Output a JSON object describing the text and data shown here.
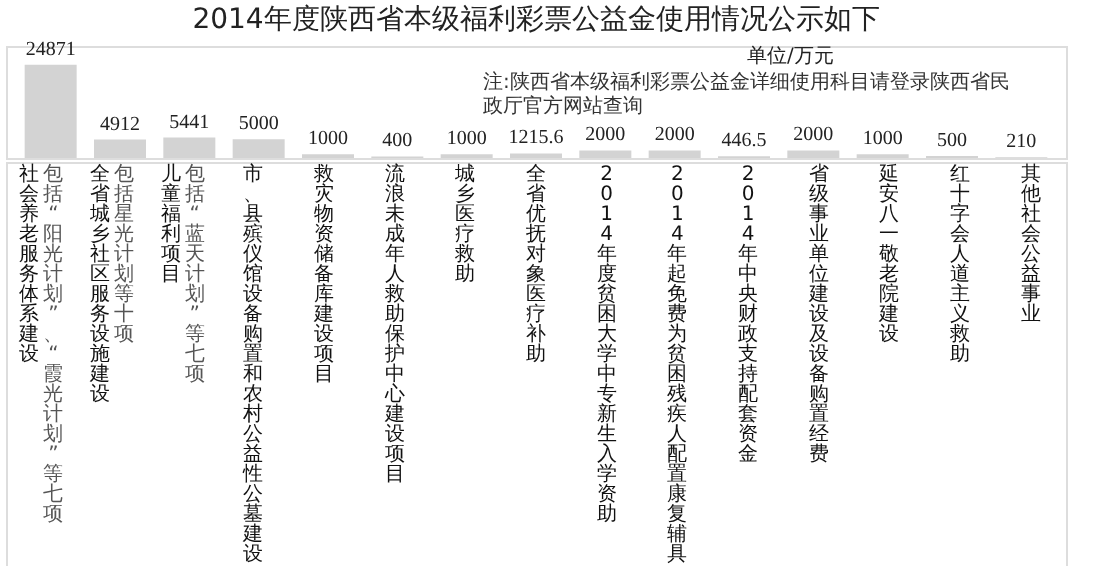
{
  "chart_data": {
    "type": "bar",
    "title": "2014年度陕西省本级福利彩票公益金使用情况公示如下",
    "ylabel": "单位/万元",
    "categories": [
      "社会养老服务体系建设",
      "全省城乡社区服务设施建设",
      "儿童福利项目",
      "市、县殡仪馆设备购置和农村公益性公墓建设",
      "救灾物资储备库建设项目",
      "流浪未成年人救助保护中心建设项目",
      "城乡医疗救助",
      "全省优抚对象医疗补助",
      "2014年度贫困大学中专新生入学资助",
      "2014年起免费为贫困残疾人配置康复辅具",
      "2014年中央财政支持配套资金",
      "省级事业单位建设及设备购置经费",
      "延安八一敬老院建设",
      "红十字会人道主义救助",
      "其他社会公益事业"
    ],
    "values": [
      24871,
      4912,
      5441,
      5000,
      1000,
      400,
      1000,
      1215.6,
      2000,
      2000,
      446.5,
      2000,
      1000,
      500,
      210
    ],
    "color": "#d3d3d3",
    "data_labels": true,
    "annotations": [
      "注:陕西省本级福利彩票公益金详细使用科目请登录陕西省民政厅官方网站查询",
      "包括“阳光计划”、“霞光计划”等七项",
      "包括星光计划等十项",
      "包括“蓝天计划”等七项"
    ]
  }
}
